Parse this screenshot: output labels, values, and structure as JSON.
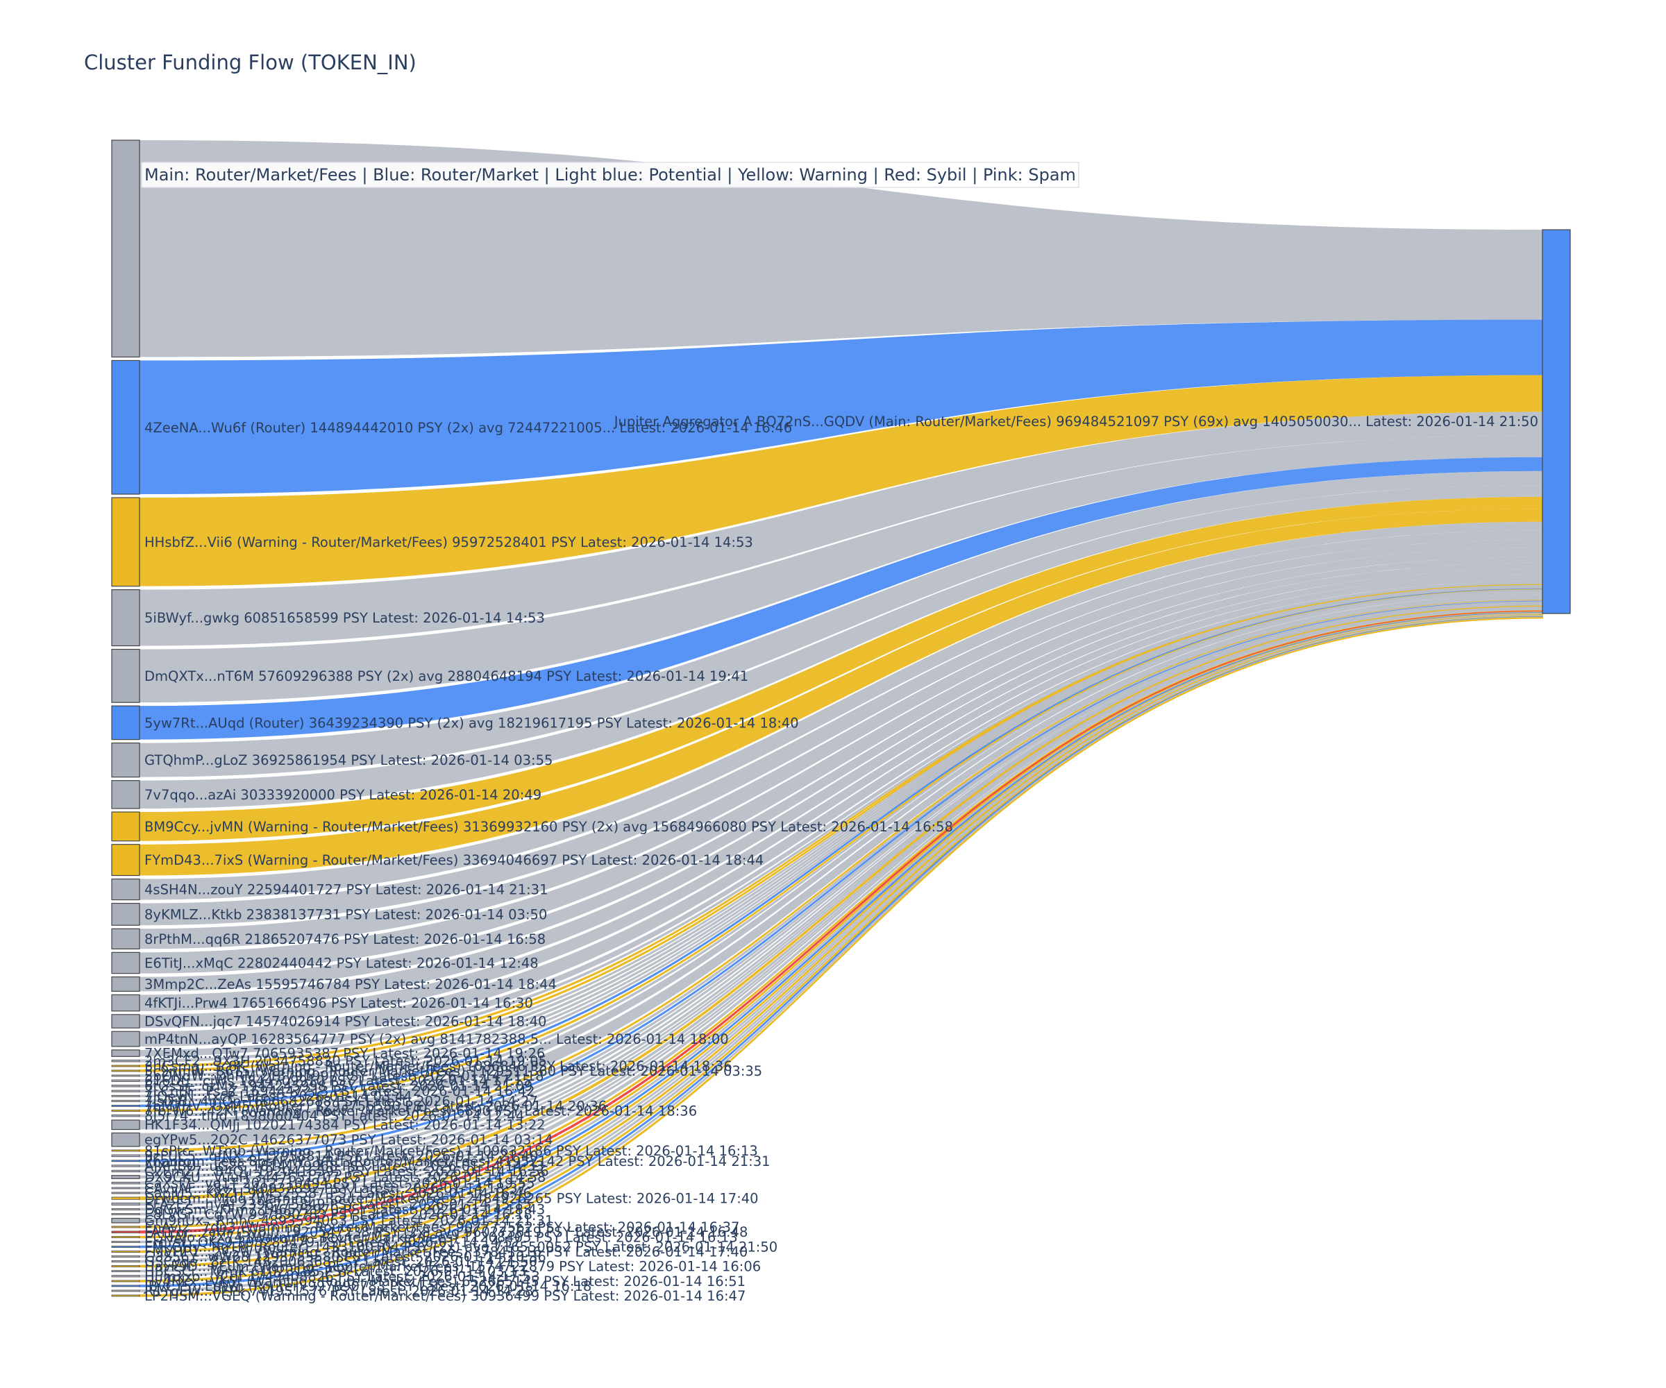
{
  "chart_data": {
    "type": "sankey",
    "title": "Cluster Funding Flow (TOKEN_IN)",
    "legend": "Main: Router/Market/Fees  |  Blue: Router/Market | Light blue: Potential | Yellow: Warning | Red: Sybil | Pink: Spam",
    "legend_placement": "top-left",
    "colors": {
      "main": "#aab0bb",
      "router": "#4f8ef5",
      "warning": "#ebb922",
      "sybil": "#ef4a4a",
      "link_main": "#b9bec7"
    },
    "target": {
      "label": "Jupiter Aggregator A BQ72nS...GQDV (Main: Router/Market/Fees) 969484521097 PSY (69x) avg 1405050030... Latest: 2026-01-14 21:50",
      "category": "router"
    },
    "sources": [
      {
        "label": "",
        "value": 235000000000,
        "category": "main"
      },
      {
        "label": "4ZeeNA...Wu6f (Router) 144894442010 PSY (2x) avg 72447221005... Latest: 2026-01-14 16:46",
        "value": 144894442010,
        "category": "router"
      },
      {
        "label": "HHsbfZ...Vii6 (Warning - Router/Market/Fees) 95972528401 PSY Latest: 2026-01-14 14:53",
        "value": 95972528401,
        "category": "warning"
      },
      {
        "label": "5iBWyf...gwkg 60851658599 PSY Latest: 2026-01-14 14:53",
        "value": 60851658599,
        "category": "main"
      },
      {
        "label": "DmQXTx...nT6M 57609296388 PSY (2x) avg 28804648194 PSY Latest: 2026-01-14 19:41",
        "value": 57609296388,
        "category": "main"
      },
      {
        "label": "5yw7Rt...AUqd (Router) 36439234390 PSY (2x) avg 18219617195 PSY Latest: 2026-01-14 18:40",
        "value": 36439234390,
        "category": "router"
      },
      {
        "label": "GTQhmP...gLoZ 36925861954 PSY Latest: 2026-01-14 03:55",
        "value": 36925861954,
        "category": "main"
      },
      {
        "label": "7v7qqo...azAi 30333920000 PSY Latest: 2026-01-14 20:49",
        "value": 30333920000,
        "category": "main"
      },
      {
        "label": "BM9Ccy...jvMN (Warning - Router/Market/Fees) 31369932160 PSY (2x) avg 15684966080 PSY Latest: 2026-01-14 16:58",
        "value": 31369932160,
        "category": "warning"
      },
      {
        "label": "FYmD43...7ixS (Warning - Router/Market/Fees) 33694046697 PSY Latest: 2026-01-14 18:44",
        "value": 33694046697,
        "category": "warning"
      },
      {
        "label": "4sSH4N...zouY 22594401727 PSY Latest: 2026-01-14 21:31",
        "value": 22594401727,
        "category": "main"
      },
      {
        "label": "8yKMLZ...Ktkb 23838137731 PSY Latest: 2026-01-14 03:50",
        "value": 23838137731,
        "category": "main"
      },
      {
        "label": "8rPthM...qq6R 21865207476 PSY Latest: 2026-01-14 16:58",
        "value": 21865207476,
        "category": "main"
      },
      {
        "label": "E6TitJ...xMqC 22802440442 PSY Latest: 2026-01-14 12:48",
        "value": 22802440442,
        "category": "main"
      },
      {
        "label": "3Mmp2C...ZeAs 15595746784 PSY Latest: 2026-01-14 18:44",
        "value": 15595746784,
        "category": "main"
      },
      {
        "label": "4fKTJi...Prw4 17651666496 PSY Latest: 2026-01-14 16:30",
        "value": 17651666496,
        "category": "main"
      },
      {
        "label": "DSvQFN...jqc7 14574026914 PSY Latest: 2026-01-14 18:40",
        "value": 14574026914,
        "category": "main"
      },
      {
        "label": "mP4tnN...ayQP 16283564777 PSY (2x) avg 8141782388.5... Latest: 2026-01-14 18:00",
        "value": 16283564777,
        "category": "main"
      },
      {
        "label": "7XEMxd...QTw7 7065935387 PSY Latest: 2026-01-14 19:26",
        "value": 7065935387,
        "category": "main"
      },
      {
        "label": "2m3CF2...9X3H 2034758830 PSY Latest: 2026-01-14 19:05",
        "value": 2034758830,
        "category": "main"
      },
      {
        "label": "3hCsma...Sc8K (Warning - Router/Market/Fees) 1086846 PSY Latest: 2026-01-14 18:36",
        "value": 1086846,
        "category": "warning"
      },
      {
        "label": "5c9nmW...B6T5 (Warning - Router/Market/Fees) 1129511360 PSY Latest: 2026-01-14 03:35",
        "value": 1129511360,
        "category": "warning"
      },
      {
        "label": "5bQNdW...DhRM 213791997 PSY Latest: 2026-01-14 21:18",
        "value": 213791997,
        "category": "main"
      },
      {
        "label": "616Dtj...cjWs 1844709910 PSY Latest: 2026-01-14 17:15",
        "value": 1844709910,
        "category": "main"
      },
      {
        "label": "6tGsSr...czMx 1944245998 PSY Latest: 2026-01-14 21:09",
        "value": 1944245998,
        "category": "main"
      },
      {
        "label": "7LCnEF...PsaZ 1694447213 PSY Latest: 2026-01-14 16:42",
        "value": 1694447213,
        "category": "main"
      },
      {
        "label": "7JQeyN...fxcP Latest: 2026-01-14 03:44",
        "value": 1000000000,
        "category": "main"
      },
      {
        "label": "7isDjB...4mQp 1606682688 PSY Latest: 2026-01-14 14:27",
        "value": 1606682688,
        "category": "main"
      },
      {
        "label": "7oM7HV...UxM5 (Router) 1293755580 PSY Latest: 2026-01-14 20:36",
        "value": 1293755580,
        "category": "router"
      },
      {
        "label": "7fbrW6...42Ki (Warning - Router/Market/Fees) 6890 PSY Latest: 2026-01-14 18:36",
        "value": 6890,
        "category": "warning"
      },
      {
        "label": "8J5r74...tiud 1898060404 PSY Latest: 2026-01-14 12:44",
        "value": 1898060404,
        "category": "main"
      },
      {
        "label": "HK1F34...QMJj 10202174384 PSY Latest: 2026-01-14 13:22",
        "value": 10202174384,
        "category": "main"
      },
      {
        "label": "egYPw5...2Q2C 14626377073 PSY Latest: 2026-01-14 03:14",
        "value": 14626377073,
        "category": "main"
      },
      {
        "label": "81sPtc...WTmb (Warning - Router/Market/Fees) 1109632186 PSY Latest: 2026-01-14 16:13",
        "value": 1109632186,
        "category": "warning"
      },
      {
        "label": "9zFUC5...qfNX 2112958814 PSY Latest: 2026-01-14 21:40",
        "value": 2112958814,
        "category": "main"
      },
      {
        "label": "Phantom: Fees 8psNvW...VRtf (Router/Market/Fees) 41952142 PSY Latest: 2026-01-14 21:31",
        "value": 41952142,
        "category": "router"
      },
      {
        "label": "AJXHBU...uG2G 1814179968 PSY Latest: 2026-01-14 14:33",
        "value": 1814179968,
        "category": "main"
      },
      {
        "label": "C2EmZ7...B4Qu 1920416595 PSY Latest: 2026-01-14 16:56",
        "value": 1920416595,
        "category": "main"
      },
      {
        "label": "DX9CKU...VuuH 3447651707 PSY Latest: 2026-01-14 14:58",
        "value": 3447651707,
        "category": "main"
      },
      {
        "label": "CaXsf7...vq1T 2012710494 PSY Latest: 2026-01-14 19:55",
        "value": 2012710494,
        "category": "main"
      },
      {
        "label": "CAvvAF...z8vT 340932892 PSY Latest: 2026-01-14 18:37",
        "value": 340932892,
        "category": "main"
      },
      {
        "label": "CapjU5...KXZH 984525587 PSY Latest: 2026-01-14 16:46",
        "value": 984525587,
        "category": "main"
      },
      {
        "label": "Drwdcm...MJdq (Warning - Router/Market/Fees) 2484926265 PSY Latest: 2026-01-14 17:40",
        "value": 2484926265,
        "category": "warning"
      },
      {
        "label": "EFAzF2...hyAJ 2396775849 PSY Latest: 2026-01-14 15:15",
        "value": 2396775849,
        "category": "main"
      },
      {
        "label": "DgGwSm...FFm7 146572970 PSY Latest: 2026-01-14 18:43",
        "value": 146572970,
        "category": "main"
      },
      {
        "label": "E8LVGr...CgYW 997890783 PSY Latest: 2026-01-14 16:18",
        "value": 997890783,
        "category": "main"
      },
      {
        "label": "Gm9nUx...RmhC 4893594063 PSY Latest: 2026-01-14 21:31",
        "value": 4893594063,
        "category": "main"
      },
      {
        "label": "EnAviz...7dn3 (Warning - Router/Market/Fees) 907772562 PSY Latest: 2026-01-14 16:37",
        "value": 907772562,
        "category": "warning"
      },
      {
        "label": "FATEor...zcHr (Sybil) 1920547238 PSY (2x) avg 960273619 PSY Latest: 2026-01-14 16:48",
        "value": 1920547238,
        "category": "sybil"
      },
      {
        "label": "EGHAJo...7X74 (Warning - Router/Market/Fees) 11208405 PSY Latest: 2026-01-14 16:13",
        "value": 11208405,
        "category": "warning"
      },
      {
        "label": "ErcYsf...QKs9 393289479 PSY Latest: 2026-01-14 14:57",
        "value": 393289479,
        "category": "main"
      },
      {
        "label": "FMkGHy...RgTM (Router) 1433100104 PSY (2x) avg 716550052 PSY Latest: 2026-01-14 21:50",
        "value": 1433100104,
        "category": "router"
      },
      {
        "label": "FMVHP1...2C5W (Warning - Router/Market/Fees) 37841516 PSY Latest: 2026-01-14 17:40",
        "value": 37841516,
        "category": "warning"
      },
      {
        "label": "G3S56Y...wW68 1293755580 PSY Latest: 2026-01-14 20:36",
        "value": 1293755580,
        "category": "main"
      },
      {
        "label": "GSCyqe...8ztK 1432006368 PSY Latest: 2026-01-14 21:50",
        "value": 1432006368,
        "category": "main"
      },
      {
        "label": "HavF9D...vEum (Warning - Router/Market/Fees) 1574722879 PSY Latest: 2026-01-14 16:06",
        "value": 1574722879,
        "category": "warning"
      },
      {
        "label": "HBCSCi...T6mK 61023185 PSY Latest: 2026-01-14 03:13",
        "value": 61023185,
        "category": "main"
      },
      {
        "label": "Humxxo...YCdf 1749408826 PSY Latest: 2026-01-14 17:53",
        "value": 1749408826,
        "category": "main"
      },
      {
        "label": "Hv4Hkx...VK5t (Warning - Router/Market/Fees) 652665145 PSY Latest: 2026-01-14 16:51",
        "value": 652665145,
        "category": "warning"
      },
      {
        "label": "JBvCY5...EdWn (Router) 997890783 PSY Latest: 2026-01-14 16:18",
        "value": 997890783,
        "category": "router"
      },
      {
        "label": "R1YgEW...PEPk 741951576 PSY Latest: 2026-01-14 14:28",
        "value": 741951576,
        "category": "main"
      },
      {
        "label": "LP2HSM...VGEQ (Warning - Router/Market/Fees) 30936499 PSY Latest: 2026-01-14 16:47",
        "value": 30936499,
        "category": "warning"
      }
    ]
  }
}
